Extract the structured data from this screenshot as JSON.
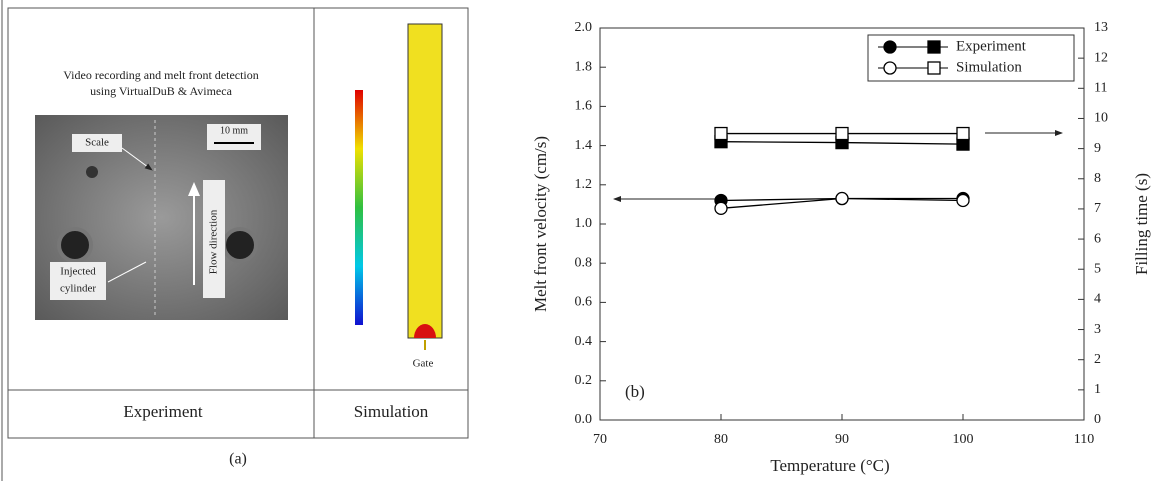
{
  "panel_a": {
    "caption": "(a)",
    "header_line_1": "Video recording and melt front detection",
    "header_line_2": "using VirtualDuB & Avimeca",
    "scale_label": "Scale",
    "scale_bar": "10 mm",
    "flow_label": "Flow direction",
    "cylinder_line_1": "Injected",
    "cylinder_line_2": "cylinder",
    "gate_label": "Gate",
    "column_1": "Experiment",
    "column_2": "Simulation"
  },
  "chart_data": {
    "type": "line",
    "annotation": "(b)",
    "x_label": "Temperature (°C)",
    "y_label": "Melt front velocity (cm/s)",
    "y2_label": "Filling time (s)",
    "x": [
      80,
      90,
      100
    ],
    "series": [
      {
        "name": "Experiment",
        "color": "#000000",
        "filled": true,
        "values": [
          1.12,
          1.13,
          1.13
        ],
        "y2_values": [
          9.23,
          9.2,
          9.15
        ]
      },
      {
        "name": "Simulation",
        "color": "#000000",
        "filled": false,
        "values": [
          1.08,
          1.13,
          1.12
        ],
        "y2_values": [
          9.5,
          9.5,
          9.5
        ]
      }
    ],
    "xlim": [
      70,
      110
    ],
    "xticks": [
      70,
      80,
      90,
      100,
      110
    ],
    "ylim": [
      0,
      2
    ],
    "yticks": [
      {
        "value": 0,
        "label": "0.0"
      },
      0.2,
      0.4,
      0.6,
      0.8,
      {
        "value": 1,
        "label": "1.0"
      },
      1.2,
      1.4,
      1.6,
      1.8,
      {
        "value": 2,
        "label": "2.0"
      }
    ],
    "y2lim": [
      0,
      13
    ],
    "y2ticks": [
      0,
      1,
      2,
      3,
      4,
      5,
      6,
      7,
      8,
      9,
      10,
      11,
      12,
      13
    ],
    "legend": "upper right"
  }
}
